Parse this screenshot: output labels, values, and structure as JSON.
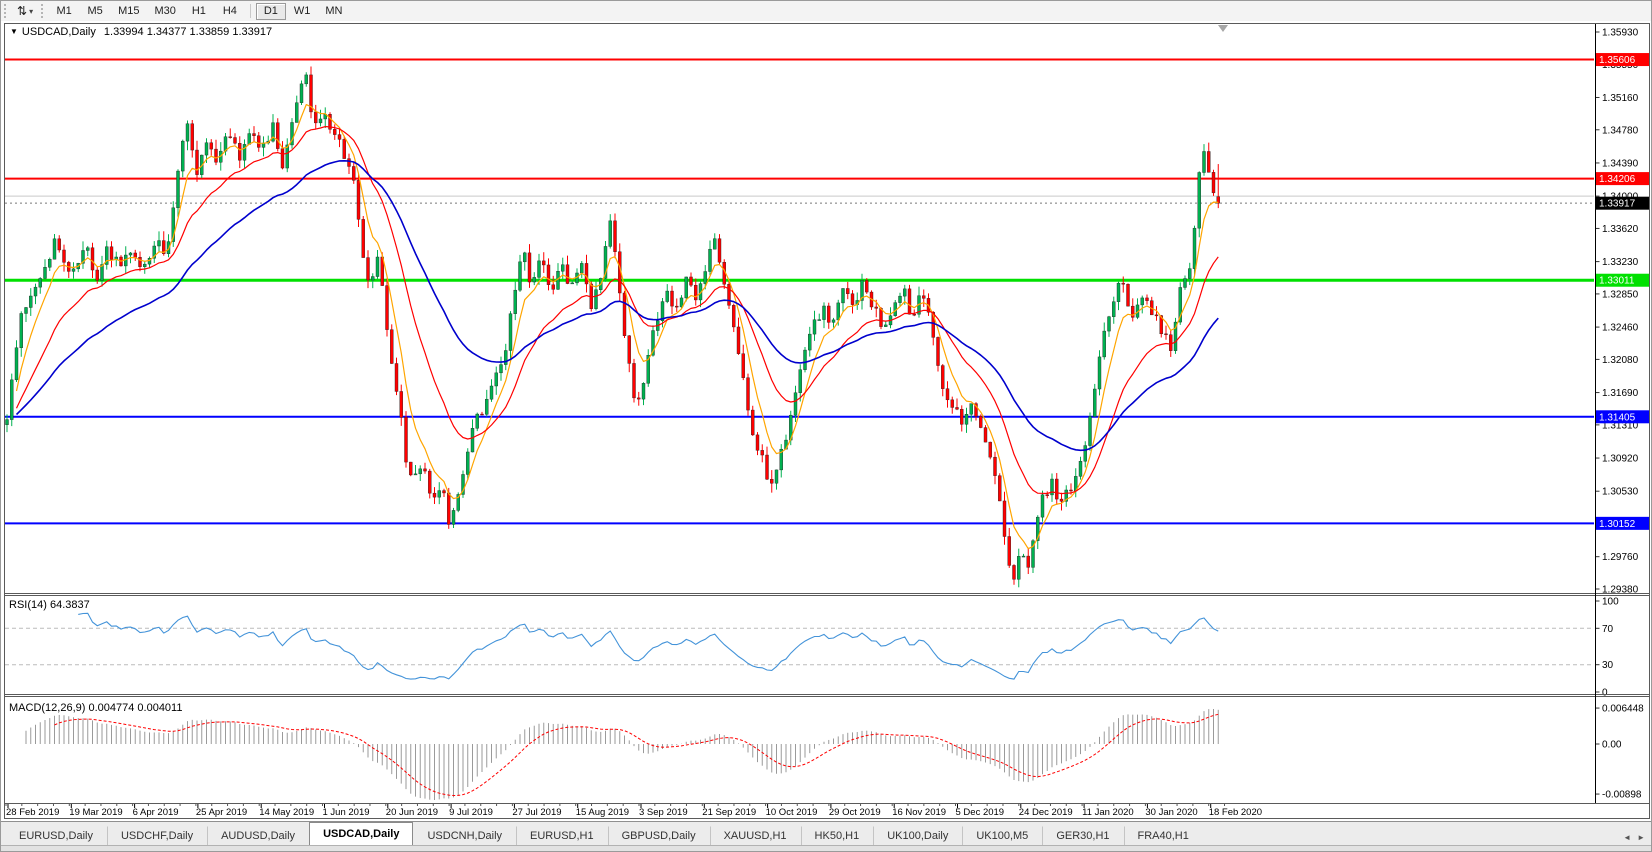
{
  "icons": {
    "tool_glyph": "⇅",
    "caret_down": "▾",
    "collapse_triangle": "▼",
    "tab_scroll_left": "◄",
    "tab_scroll_right": "►"
  },
  "toolbar": {
    "timeframes": [
      "M1",
      "M5",
      "M15",
      "M30",
      "H1",
      "H4",
      "D1",
      "W1",
      "MN"
    ],
    "active_timeframe": "D1"
  },
  "chart": {
    "title_symbol": "USDCAD,Daily",
    "ohlc": "1.33994 1.34377 1.33859 1.33917",
    "rsi_label": "RSI(14) 64.3837",
    "macd_label": "MACD(12,26,9) 0.004774 0.004011"
  },
  "chart_data": {
    "type": "candlestick",
    "symbol": "USDCAD",
    "timeframe": "Daily",
    "current_bar": {
      "open": 1.33994,
      "high": 1.34377,
      "low": 1.33859,
      "close": 1.33917
    },
    "bars": 256,
    "colors": {
      "up": "#00B050",
      "down": "#FF0000",
      "body_outline": "#222222",
      "ma_fast": "#FFA500",
      "ma_mid": "#FF0000",
      "ma_slow": "#0000CD",
      "rsi_line": "#4393D9",
      "macd_hist": "#9a9a9a",
      "macd_signal": "#FF0000",
      "grid_gray": "#C9C9C9"
    },
    "price_axis": {
      "min": 1.2938,
      "max": 1.3593,
      "tick_labels": [
        "1.35930",
        "1.35550",
        "1.35160",
        "1.34780",
        "1.34390",
        "1.34000",
        "1.33620",
        "1.33230",
        "1.32850",
        "1.32460",
        "1.32080",
        "1.31690",
        "1.31310",
        "1.30920",
        "1.30530",
        "1.29760",
        "1.29380"
      ]
    },
    "horizontal_lines": [
      {
        "price": 1.35606,
        "label": "1.35606",
        "color": "#FF0000",
        "width": 2,
        "badge": true,
        "text_color": "#ffffff"
      },
      {
        "price": 1.34206,
        "label": "1.34206",
        "color": "#FF0000",
        "width": 2,
        "badge": true,
        "text_color": "#ffffff"
      },
      {
        "price": 1.34,
        "label": "",
        "color": "#C9C9C9",
        "width": 1,
        "badge": false,
        "text_color": "#ffffff"
      },
      {
        "price": 1.33011,
        "label": "1.33011",
        "color": "#00E000",
        "width": 3,
        "badge": true,
        "text_color": "#ffffff"
      },
      {
        "price": 1.31405,
        "label": "1.31405",
        "color": "#0000FF",
        "width": 2,
        "badge": true,
        "text_color": "#ffffff"
      },
      {
        "price": 1.30152,
        "label": "1.30152",
        "color": "#0000FF",
        "width": 2,
        "badge": true,
        "text_color": "#ffffff"
      }
    ],
    "current_price": {
      "value": 1.33917,
      "label": "1.33917",
      "badge_color": "#000000",
      "text_color": "#ffffff"
    },
    "x_axis_dates": [
      "28 Feb 2019",
      "19 Mar 2019",
      "6 Apr 2019",
      "25 Apr 2019",
      "14 May 2019",
      "1 Jun 2019",
      "20 Jun 2019",
      "9 Jul 2019",
      "27 Jul 2019",
      "15 Aug 2019",
      "3 Sep 2019",
      "21 Sep 2019",
      "10 Oct 2019",
      "29 Oct 2019",
      "16 Nov 2019",
      "5 Dec 2019",
      "24 Dec 2019",
      "11 Jan 2020",
      "30 Jan 2020",
      "18 Feb 2020"
    ],
    "close_path_anchors": [
      [
        0,
        1.3185
      ],
      [
        6,
        1.314
      ],
      [
        20,
        1.3255
      ],
      [
        40,
        1.331
      ],
      [
        55,
        1.335
      ],
      [
        70,
        1.33
      ],
      [
        85,
        1.3345
      ],
      [
        95,
        1.329
      ],
      [
        105,
        1.3345
      ],
      [
        118,
        1.3315
      ],
      [
        130,
        1.334
      ],
      [
        142,
        1.331
      ],
      [
        155,
        1.335
      ],
      [
        165,
        1.333
      ],
      [
        178,
        1.3445
      ],
      [
        188,
        1.349
      ],
      [
        196,
        1.342
      ],
      [
        205,
        1.3465
      ],
      [
        215,
        1.344
      ],
      [
        228,
        1.3475
      ],
      [
        238,
        1.3445
      ],
      [
        250,
        1.348
      ],
      [
        262,
        1.3455
      ],
      [
        272,
        1.348
      ],
      [
        282,
        1.343
      ],
      [
        295,
        1.3505
      ],
      [
        305,
        1.355
      ],
      [
        312,
        1.347
      ],
      [
        322,
        1.35
      ],
      [
        332,
        1.348
      ],
      [
        342,
        1.3455
      ],
      [
        352,
        1.342
      ],
      [
        360,
        1.3345
      ],
      [
        368,
        1.329
      ],
      [
        377,
        1.3325
      ],
      [
        386,
        1.3245
      ],
      [
        395,
        1.3175
      ],
      [
        405,
        1.3095
      ],
      [
        413,
        1.306
      ],
      [
        421,
        1.309
      ],
      [
        430,
        1.3045
      ],
      [
        440,
        1.306
      ],
      [
        448,
        1.302
      ],
      [
        456,
        1.3045
      ],
      [
        465,
        1.3095
      ],
      [
        474,
        1.3135
      ],
      [
        484,
        1.3155
      ],
      [
        494,
        1.3185
      ],
      [
        504,
        1.3215
      ],
      [
        514,
        1.329
      ],
      [
        522,
        1.334
      ],
      [
        530,
        1.3295
      ],
      [
        540,
        1.333
      ],
      [
        550,
        1.3285
      ],
      [
        560,
        1.332
      ],
      [
        570,
        1.3295
      ],
      [
        580,
        1.333
      ],
      [
        590,
        1.327
      ],
      [
        600,
        1.331
      ],
      [
        610,
        1.338
      ],
      [
        618,
        1.329
      ],
      [
        628,
        1.32
      ],
      [
        636,
        1.3145
      ],
      [
        645,
        1.3195
      ],
      [
        655,
        1.3255
      ],
      [
        665,
        1.329
      ],
      [
        675,
        1.327
      ],
      [
        685,
        1.33
      ],
      [
        695,
        1.328
      ],
      [
        705,
        1.3315
      ],
      [
        713,
        1.3345
      ],
      [
        722,
        1.331
      ],
      [
        732,
        1.3255
      ],
      [
        742,
        1.3185
      ],
      [
        752,
        1.3125
      ],
      [
        762,
        1.3085
      ],
      [
        772,
        1.306
      ],
      [
        782,
        1.3105
      ],
      [
        792,
        1.3155
      ],
      [
        802,
        1.3205
      ],
      [
        812,
        1.3245
      ],
      [
        822,
        1.327
      ],
      [
        832,
        1.325
      ],
      [
        842,
        1.329
      ],
      [
        852,
        1.327
      ],
      [
        862,
        1.33
      ],
      [
        872,
        1.327
      ],
      [
        882,
        1.324
      ],
      [
        892,
        1.3265
      ],
      [
        902,
        1.329
      ],
      [
        912,
        1.3255
      ],
      [
        922,
        1.329
      ],
      [
        932,
        1.323
      ],
      [
        942,
        1.318
      ],
      [
        952,
        1.315
      ],
      [
        962,
        1.313
      ],
      [
        972,
        1.316
      ],
      [
        982,
        1.312
      ],
      [
        992,
        1.308
      ],
      [
        1000,
        1.303
      ],
      [
        1008,
        1.2965
      ],
      [
        1014,
        1.2948
      ],
      [
        1020,
        1.2985
      ],
      [
        1026,
        1.2958
      ],
      [
        1034,
        1.3
      ],
      [
        1042,
        1.305
      ],
      [
        1052,
        1.3062
      ],
      [
        1060,
        1.304
      ],
      [
        1070,
        1.306
      ],
      [
        1080,
        1.3085
      ],
      [
        1090,
        1.315
      ],
      [
        1100,
        1.322
      ],
      [
        1110,
        1.327
      ],
      [
        1120,
        1.33
      ],
      [
        1130,
        1.326
      ],
      [
        1140,
        1.329
      ],
      [
        1150,
        1.327
      ],
      [
        1160,
        1.324
      ],
      [
        1170,
        1.3225
      ],
      [
        1180,
        1.329
      ],
      [
        1190,
        1.332
      ],
      [
        1198,
        1.342
      ],
      [
        1204,
        1.3462
      ],
      [
        1210,
        1.3398
      ],
      [
        1216,
        1.3405
      ],
      [
        1221,
        1.33917
      ]
    ],
    "moving_averages": [
      {
        "name": "ma-fast",
        "period": 6,
        "color": "#FFA500",
        "width": 1.2
      },
      {
        "name": "ma-mid",
        "period": 18,
        "color": "#FF0000",
        "width": 1.2
      },
      {
        "name": "ma-slow",
        "period": 42,
        "color": "#0000CD",
        "width": 1.6
      }
    ],
    "rsi": {
      "period": 14,
      "current": 64.3837,
      "levels": [
        70,
        30
      ],
      "axis_ticks": [
        "100",
        "70",
        "30",
        "0"
      ],
      "axis_tick_values": [
        100,
        70,
        30,
        0
      ]
    },
    "macd": {
      "fast": 12,
      "slow": 26,
      "signal": 9,
      "current_main": 0.004774,
      "current_signal": 0.004011,
      "axis_ticks": [
        "0.006448",
        "0.00",
        "-0.00898"
      ],
      "axis_tick_values": [
        0.006448,
        0,
        -0.00898
      ]
    }
  },
  "tabs": {
    "items": [
      "EURUSD,Daily",
      "USDCHF,Daily",
      "AUDUSD,Daily",
      "USDCAD,Daily",
      "USDCNH,Daily",
      "EURUSD,H1",
      "GBPUSD,Daily",
      "XAUUSD,H1",
      "HK50,H1",
      "UK100,Daily",
      "UK100,M5",
      "GER30,H1",
      "FRA40,H1"
    ],
    "active": "USDCAD,Daily"
  }
}
